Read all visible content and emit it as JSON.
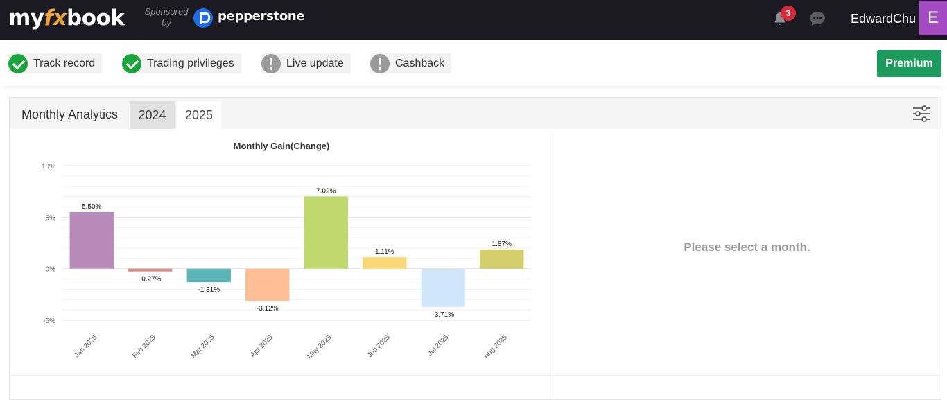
{
  "header": {
    "logo": {
      "part1": "my",
      "part2": "fx",
      "part3": "book"
    },
    "sponsor_text_line1": "Sponsored",
    "sponsor_text_line2": "by",
    "sponsor_name": "pepperstone",
    "notification_count": "3",
    "username": "EdwardChu",
    "avatar_letter": "E",
    "colors": {
      "bg": "#1b1a22",
      "avatar": "#a44bc4",
      "badge": "#d6283a",
      "logo_accent": "#e9a33a"
    }
  },
  "status": {
    "items": [
      {
        "label": "Track record",
        "state": "ok"
      },
      {
        "label": "Trading privileges",
        "state": "ok"
      },
      {
        "label": "Live update",
        "state": "warn"
      },
      {
        "label": "Cashback",
        "state": "warn"
      }
    ],
    "premium_label": "Premium",
    "colors": {
      "ok": "#1aa53c",
      "warn": "#9a9a9a",
      "premium": "#1f9a5e"
    }
  },
  "panel": {
    "title": "Monthly Analytics",
    "years": [
      "2024",
      "2025"
    ],
    "selected_year": "2025",
    "empty_message": "Please select a month."
  },
  "chart_data": {
    "type": "bar",
    "title": "Monthly Gain(Change)",
    "categories": [
      "Jan 2025",
      "Feb 2025",
      "Mar 2025",
      "Apr 2025",
      "May 2025",
      "Jun 2025",
      "Jul 2025",
      "Aug 2025"
    ],
    "values": [
      5.5,
      -0.27,
      -1.31,
      -3.12,
      7.02,
      1.11,
      -3.71,
      1.87
    ],
    "labels": [
      "5.50%",
      "-0.27%",
      "-1.31%",
      "-3.12%",
      "7.02%",
      "1.11%",
      "-3.71%",
      "1.87%"
    ],
    "colors": [
      "#b88ab9",
      "#d88b86",
      "#5ab5b7",
      "#ffbf96",
      "#c0d96f",
      "#f9d877",
      "#cfe5fa",
      "#d4ce6d"
    ],
    "yticks": [
      10,
      5,
      0,
      -5
    ],
    "ytick_labels": [
      "10%",
      "5%",
      "0%",
      "-5%"
    ],
    "ylim": [
      -5,
      10
    ],
    "grid": true,
    "legend": "none"
  }
}
